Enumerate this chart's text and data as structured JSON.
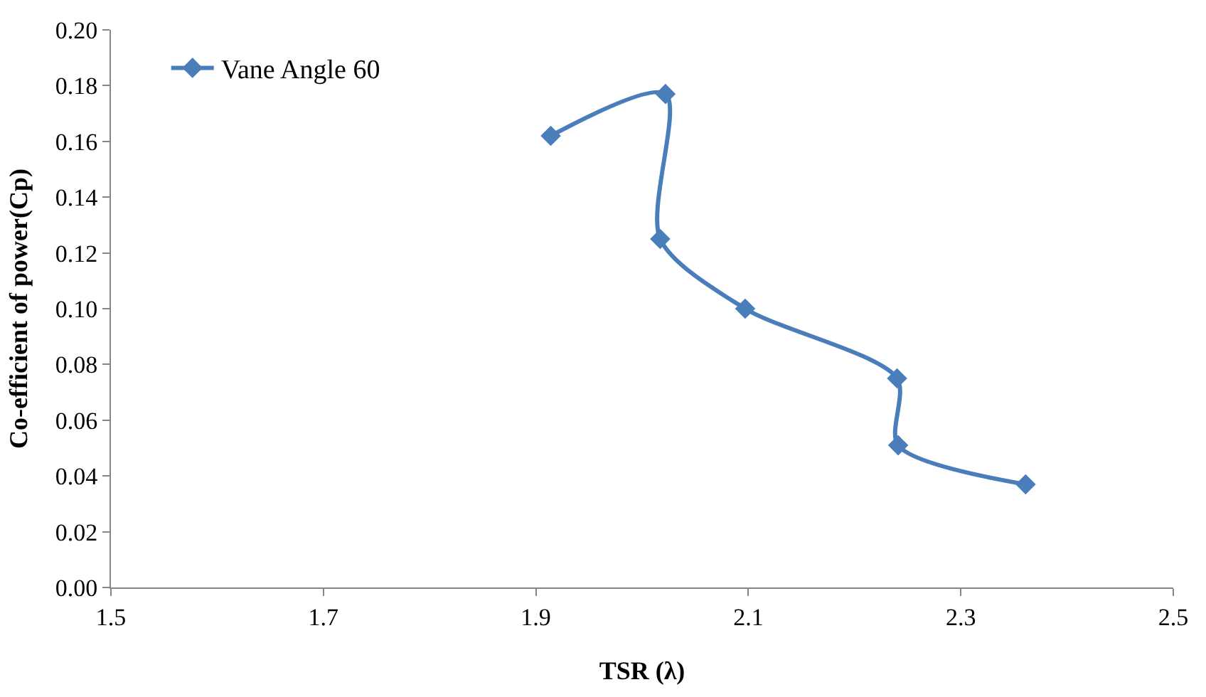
{
  "chart_data": {
    "type": "line",
    "xlabel": "TSR (λ)",
    "ylabel": "Co-efficient of power(Cp)",
    "x": [
      1.914,
      2.022,
      2.017,
      2.097,
      2.24,
      2.241,
      2.361
    ],
    "series": [
      {
        "name": "Vane Angle 60",
        "color": "#4a7ebb",
        "values": [
          0.162,
          0.177,
          0.125,
          0.1,
          0.075,
          0.051,
          0.037
        ]
      }
    ],
    "xlim": [
      1.5,
      2.5
    ],
    "xticks": [
      1.5,
      1.7,
      1.9,
      2.1,
      2.3,
      2.5
    ],
    "ylim": [
      0,
      0.2
    ],
    "yticks": [
      {
        "value": 0,
        "label": "0.00"
      },
      {
        "value": 0.02,
        "label": "0.02"
      },
      {
        "value": 0.04,
        "label": "0.04"
      },
      {
        "value": 0.06,
        "label": "0.06"
      },
      {
        "value": 0.08,
        "label": "0.08"
      },
      {
        "value": 0.1,
        "label": "0.10"
      },
      {
        "value": 0.12,
        "label": "0.12"
      },
      {
        "value": 0.14,
        "label": "0.14"
      },
      {
        "value": 0.16,
        "label": "0.16"
      },
      {
        "value": 0.18,
        "label": "0.18"
      },
      {
        "value": 0.2,
        "label": "0.20"
      }
    ],
    "legend": "top left",
    "marker": "diamond",
    "line_style": "solid"
  }
}
